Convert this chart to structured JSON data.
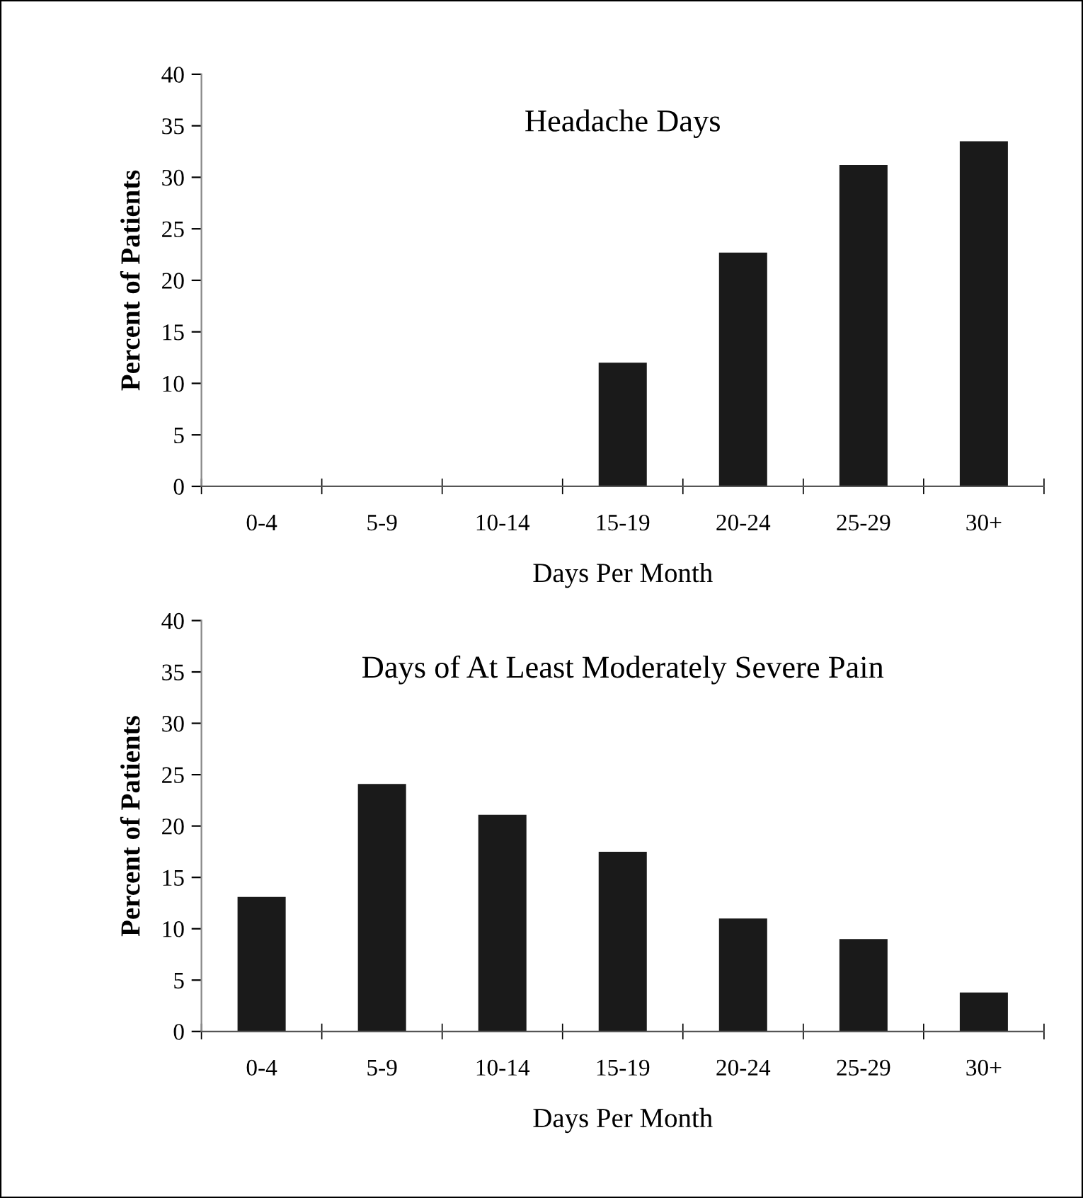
{
  "chart_data": [
    {
      "type": "bar",
      "title": "Headache Days",
      "xlabel": "Days Per Month",
      "ylabel": "Percent of Patients",
      "categories": [
        "0-4",
        "5-9",
        "10-14",
        "15-19",
        "20-24",
        "25-29",
        "30+"
      ],
      "values": [
        0,
        0,
        0,
        12.0,
        22.7,
        31.2,
        33.5
      ],
      "color": "#1a1a1a",
      "ylim": [
        0,
        40
      ],
      "yticks": [
        0,
        5,
        10,
        15,
        20,
        25,
        30,
        35,
        40
      ],
      "grid": false
    },
    {
      "type": "bar",
      "title": "Days of At Least Moderately Severe Pain",
      "xlabel": "Days Per Month",
      "ylabel": "Percent of Patients",
      "categories": [
        "0-4",
        "5-9",
        "10-14",
        "15-19",
        "20-24",
        "25-29",
        "30+"
      ],
      "values": [
        13.1,
        24.1,
        21.1,
        17.5,
        11.0,
        9.0,
        3.8
      ],
      "color": "#1a1a1a",
      "ylim": [
        0,
        40
      ],
      "yticks": [
        0,
        5,
        10,
        15,
        20,
        25,
        30,
        35,
        40
      ],
      "grid": false
    }
  ]
}
